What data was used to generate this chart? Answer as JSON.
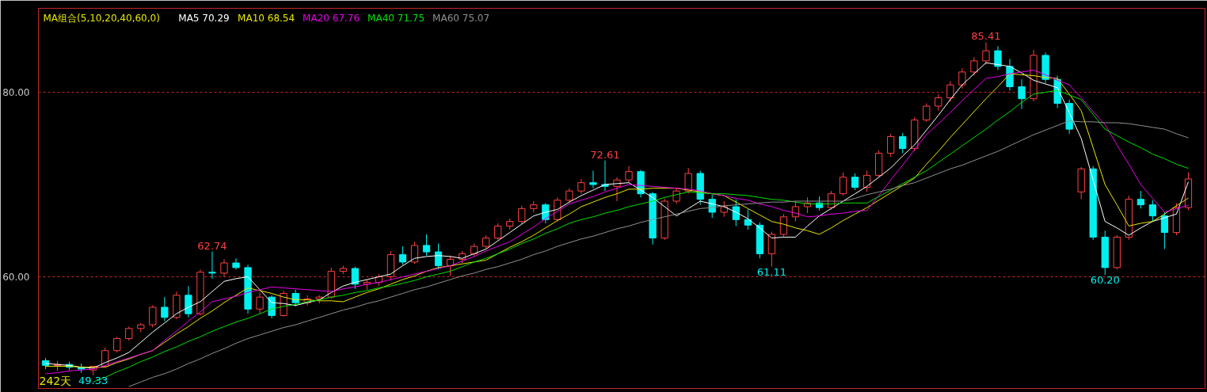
{
  "chart_data": {
    "type": "candlestick",
    "title": "MA组合(5,10,20,40,60,0)",
    "categories": [
      null,
      null,
      null,
      null,
      null,
      null,
      null,
      null,
      null,
      null,
      null,
      null,
      null,
      null,
      null,
      null,
      null,
      null,
      null,
      null,
      null,
      null,
      null,
      null,
      null,
      null,
      null,
      null,
      null,
      null,
      null,
      null,
      null,
      null,
      null,
      null,
      null,
      null,
      null,
      null,
      null,
      null,
      null,
      null,
      null,
      null,
      null,
      null,
      null,
      null,
      null,
      null,
      null,
      null,
      null,
      null,
      null,
      null,
      null,
      null,
      null,
      null,
      null,
      null,
      null,
      null,
      null,
      null,
      null,
      null,
      null,
      null,
      null,
      null,
      null,
      null,
      null,
      null,
      null,
      null,
      null,
      null,
      null,
      null,
      null,
      null,
      null,
      null,
      null,
      null,
      null,
      null,
      null,
      null,
      null,
      null,
      null
    ],
    "ohlc": [
      [
        50.9,
        51.2,
        50.0,
        50.4
      ],
      [
        50.4,
        50.9,
        49.8,
        50.5
      ],
      [
        50.5,
        50.8,
        49.9,
        50.2
      ],
      [
        50.2,
        50.6,
        49.6,
        50.0
      ],
      [
        49.9,
        50.3,
        49.33,
        50.3
      ],
      [
        50.3,
        52.3,
        50.2,
        52.0
      ],
      [
        52.0,
        53.5,
        51.8,
        53.3
      ],
      [
        53.3,
        54.6,
        53.1,
        54.4
      ],
      [
        54.4,
        55.0,
        54.0,
        54.8
      ],
      [
        54.8,
        56.9,
        54.5,
        56.7
      ],
      [
        56.7,
        57.8,
        55.2,
        55.6
      ],
      [
        55.6,
        58.4,
        55.4,
        58.0
      ],
      [
        58.0,
        59.0,
        55.6,
        56.0
      ],
      [
        56.0,
        60.8,
        55.8,
        60.5
      ],
      [
        60.5,
        62.74,
        59.8,
        60.4
      ],
      [
        60.4,
        61.9,
        60.0,
        61.5
      ],
      [
        61.5,
        62.0,
        60.8,
        61.0
      ],
      [
        61.0,
        61.3,
        56.0,
        56.5
      ],
      [
        56.5,
        58.3,
        56.0,
        57.8
      ],
      [
        57.8,
        58.0,
        55.5,
        55.8
      ],
      [
        55.8,
        58.5,
        55.7,
        58.2
      ],
      [
        58.2,
        58.6,
        56.8,
        57.2
      ],
      [
        57.2,
        58.0,
        56.9,
        57.6
      ],
      [
        57.6,
        58.0,
        57.1,
        57.8
      ],
      [
        57.8,
        61.0,
        57.6,
        60.6
      ],
      [
        60.6,
        61.2,
        60.3,
        60.9
      ],
      [
        60.9,
        61.1,
        58.7,
        59.2
      ],
      [
        59.2,
        59.7,
        58.6,
        59.4
      ],
      [
        59.4,
        60.3,
        59.0,
        60.0
      ],
      [
        60.0,
        62.8,
        59.6,
        62.4
      ],
      [
        62.4,
        63.3,
        61.3,
        61.6
      ],
      [
        61.6,
        63.8,
        61.4,
        63.4
      ],
      [
        63.4,
        64.6,
        62.3,
        62.7
      ],
      [
        62.7,
        63.6,
        60.8,
        61.2
      ],
      [
        61.2,
        62.3,
        60.1,
        61.9
      ],
      [
        61.9,
        62.8,
        61.5,
        62.5
      ],
      [
        62.5,
        63.6,
        62.2,
        63.3
      ],
      [
        63.3,
        64.5,
        63.0,
        64.2
      ],
      [
        64.2,
        65.8,
        64.0,
        65.5
      ],
      [
        65.5,
        66.3,
        65.1,
        66.0
      ],
      [
        66.0,
        67.7,
        65.7,
        67.4
      ],
      [
        67.4,
        68.2,
        67.0,
        67.8
      ],
      [
        67.8,
        68.0,
        65.8,
        66.2
      ],
      [
        66.2,
        68.6,
        66.0,
        68.3
      ],
      [
        68.3,
        69.6,
        68.0,
        69.3
      ],
      [
        69.3,
        70.6,
        69.0,
        70.2
      ],
      [
        70.2,
        71.5,
        69.6,
        70.0
      ],
      [
        70.0,
        72.61,
        69.3,
        69.8
      ],
      [
        69.8,
        70.8,
        68.2,
        70.5
      ],
      [
        70.5,
        72.0,
        70.2,
        71.4
      ],
      [
        71.4,
        71.6,
        68.6,
        69.0
      ],
      [
        69.0,
        69.2,
        63.5,
        64.2
      ],
      [
        64.2,
        68.5,
        64.0,
        68.2
      ],
      [
        68.2,
        69.6,
        67.9,
        69.3
      ],
      [
        69.3,
        71.8,
        69.0,
        71.2
      ],
      [
        71.2,
        71.5,
        67.8,
        68.4
      ],
      [
        68.4,
        68.9,
        66.4,
        67.0
      ],
      [
        67.0,
        68.2,
        66.5,
        67.6
      ],
      [
        67.6,
        68.4,
        65.5,
        66.2
      ],
      [
        66.2,
        67.3,
        65.1,
        65.6
      ],
      [
        65.6,
        65.9,
        62.0,
        62.5
      ],
      [
        62.5,
        64.9,
        61.11,
        64.6
      ],
      [
        64.6,
        66.8,
        64.3,
        66.5
      ],
      [
        66.5,
        68.2,
        66.0,
        67.6
      ],
      [
        67.6,
        68.6,
        66.9,
        68.0
      ],
      [
        68.0,
        68.7,
        67.2,
        67.5
      ],
      [
        67.5,
        69.3,
        67.3,
        69.0
      ],
      [
        69.0,
        71.3,
        68.8,
        70.8
      ],
      [
        70.8,
        71.2,
        69.4,
        69.7
      ],
      [
        69.7,
        71.5,
        69.2,
        71.0
      ],
      [
        71.0,
        73.7,
        70.8,
        73.4
      ],
      [
        73.4,
        75.5,
        73.0,
        75.2
      ],
      [
        75.2,
        75.6,
        73.4,
        73.9
      ],
      [
        73.9,
        77.3,
        73.6,
        77.0
      ],
      [
        77.0,
        78.8,
        76.8,
        78.5
      ],
      [
        78.5,
        79.8,
        78.0,
        79.4
      ],
      [
        79.4,
        81.2,
        79.0,
        80.8
      ],
      [
        80.8,
        82.6,
        80.4,
        82.2
      ],
      [
        82.2,
        83.8,
        81.8,
        83.4
      ],
      [
        83.4,
        85.41,
        83.0,
        84.5
      ],
      [
        84.5,
        85.0,
        82.4,
        82.8
      ],
      [
        82.8,
        83.6,
        80.2,
        80.6
      ],
      [
        80.6,
        81.4,
        78.2,
        79.3
      ],
      [
        79.3,
        84.6,
        79.0,
        84.0
      ],
      [
        84.0,
        84.3,
        81.0,
        81.4
      ],
      [
        81.4,
        81.8,
        78.3,
        78.8
      ],
      [
        78.8,
        79.2,
        75.5,
        76.0
      ],
      [
        69.2,
        71.9,
        68.4,
        71.7
      ],
      [
        71.7,
        72.0,
        64.0,
        64.3
      ],
      [
        64.3,
        65.0,
        60.2,
        61.0
      ],
      [
        61.0,
        64.5,
        60.8,
        64.3
      ],
      [
        64.3,
        68.8,
        64.0,
        68.4
      ],
      [
        68.4,
        69.3,
        67.4,
        67.8
      ],
      [
        67.8,
        68.3,
        66.0,
        66.6
      ],
      [
        66.6,
        67.0,
        63.0,
        64.8
      ],
      [
        64.8,
        68.0,
        64.5,
        67.5
      ],
      [
        67.5,
        71.3,
        67.2,
        70.6
      ]
    ],
    "series": [
      {
        "name": "MA5 70.29",
        "type": "line",
        "color": "#ffffff",
        "values": [
          50.6,
          50.5,
          50.4,
          50.2,
          50.1,
          50.7,
          51.2,
          51.8,
          52.9,
          54.0,
          55.0,
          56.0,
          56.7,
          57.3,
          58.4,
          59.5,
          59.8,
          60.0,
          58.6,
          57.2,
          57.1,
          56.9,
          57.2,
          57.5,
          58.3,
          59.0,
          59.4,
          59.7,
          60.0,
          60.3,
          61.2,
          62.0,
          62.2,
          62.3,
          62.2,
          62.0,
          62.5,
          63.0,
          63.9,
          64.8,
          65.7,
          66.6,
          67.0,
          67.3,
          68.1,
          68.8,
          69.4,
          70.0,
          70.1,
          70.2,
          69.4,
          68.6,
          67.6,
          66.6,
          67.4,
          68.2,
          67.9,
          67.6,
          67.0,
          66.3,
          65.3,
          64.2,
          64.3,
          64.3,
          65.5,
          66.6,
          67.4,
          68.2,
          69.0,
          69.8,
          70.8,
          71.8,
          73.1,
          74.3,
          75.9,
          77.5,
          79.2,
          80.8,
          82.0,
          83.2,
          83.0,
          82.8,
          82.1,
          81.3,
          80.9,
          80.5,
          77.8,
          75.0,
          70.5,
          66.0,
          65.3,
          64.5,
          65.3,
          66.0,
          66.4,
          66.8,
          70.29
        ]
      },
      {
        "name": "MA10 68.54",
        "type": "line",
        "color": "#e8e800",
        "values": [
          50.3,
          50.3,
          50.3,
          50.2,
          50.2,
          50.2,
          50.7,
          51.1,
          51.6,
          52.0,
          52.9,
          53.8,
          54.6,
          55.5,
          56.3,
          57.2,
          58.0,
          58.8,
          58.5,
          58.2,
          57.8,
          57.5,
          57.5,
          57.4,
          57.4,
          57.3,
          57.8,
          58.3,
          58.7,
          59.2,
          59.7,
          60.1,
          60.6,
          61.0,
          61.2,
          61.4,
          61.6,
          61.8,
          62.5,
          63.2,
          63.8,
          64.5,
          65.3,
          66.1,
          66.8,
          67.6,
          68.1,
          68.6,
          69.0,
          69.5,
          69.5,
          69.6,
          69.6,
          69.6,
          69.4,
          69.2,
          69.0,
          68.8,
          68.1,
          67.4,
          66.7,
          66.0,
          65.7,
          65.3,
          65.0,
          64.6,
          65.3,
          66.1,
          66.8,
          67.5,
          68.3,
          69.1,
          69.9,
          70.7,
          72.2,
          73.6,
          75.1,
          76.5,
          77.9,
          79.3,
          80.6,
          82.0,
          81.9,
          81.8,
          81.6,
          81.5,
          79.8,
          78.0,
          74.0,
          70.0,
          67.8,
          65.5,
          65.8,
          66.0,
          66.8,
          67.7,
          68.54
        ]
      },
      {
        "name": "MA20 67.76",
        "type": "line",
        "color": "#e800e8",
        "values": [
          49.5,
          49.6,
          49.8,
          49.9,
          50.0,
          50.4,
          50.8,
          51.2,
          51.6,
          52.0,
          53.1,
          54.1,
          55.2,
          56.2,
          57.3,
          57.6,
          57.9,
          58.3,
          58.6,
          58.9,
          58.8,
          58.7,
          58.6,
          58.5,
          58.4,
          58.7,
          58.9,
          59.2,
          59.4,
          59.7,
          60.0,
          60.3,
          60.6,
          60.9,
          61.2,
          61.7,
          62.2,
          62.8,
          63.3,
          63.8,
          64.6,
          65.4,
          66.3,
          67.1,
          67.9,
          68.3,
          68.7,
          69.2,
          69.6,
          70.0,
          69.9,
          69.8,
          69.7,
          69.6,
          69.5,
          69.3,
          69.0,
          68.8,
          68.5,
          68.3,
          67.9,
          67.6,
          67.2,
          66.9,
          66.5,
          66.6,
          66.8,
          66.9,
          67.1,
          67.2,
          68.8,
          70.5,
          72.1,
          73.8,
          75.4,
          76.6,
          77.8,
          79.1,
          80.3,
          81.5,
          81.7,
          82.0,
          82.2,
          82.4,
          81.9,
          81.3,
          80.8,
          79.4,
          77.9,
          76.5,
          74.3,
          72.2,
          70.0,
          68.5,
          67.0,
          67.4,
          67.76
        ]
      },
      {
        "name": "MA40 71.75",
        "type": "line",
        "color": "#00e000",
        "values": [
          null,
          null,
          null,
          null,
          48.6,
          49.1,
          49.7,
          50.2,
          50.8,
          51.3,
          51.9,
          52.4,
          53.0,
          53.5,
          54.1,
          54.6,
          55.1,
          55.5,
          56.0,
          56.5,
          56.8,
          57.0,
          57.3,
          57.5,
          57.8,
          58.0,
          58.3,
          58.5,
          58.8,
          59.0,
          59.3,
          59.6,
          60.0,
          60.3,
          60.6,
          61.1,
          61.6,
          62.0,
          62.5,
          63.0,
          63.6,
          64.1,
          64.7,
          65.2,
          65.8,
          66.2,
          66.5,
          66.9,
          67.2,
          67.6,
          67.9,
          68.2,
          68.6,
          68.9,
          69.2,
          69.1,
          69.0,
          69.0,
          68.9,
          68.8,
          68.6,
          68.4,
          68.3,
          68.1,
          67.9,
          67.9,
          67.9,
          68.0,
          68.0,
          68.0,
          68.7,
          69.4,
          70.1,
          70.8,
          71.5,
          72.4,
          73.3,
          74.2,
          75.1,
          76.0,
          77.0,
          77.9,
          78.9,
          79.8,
          80.0,
          80.2,
          79.7,
          79.2,
          77.6,
          76.0,
          75.3,
          74.6,
          74.0,
          73.3,
          72.8,
          72.2,
          71.75
        ]
      },
      {
        "name": "MA60 75.07",
        "type": "line",
        "color": "#909090",
        "values": [
          null,
          null,
          null,
          null,
          null,
          null,
          null,
          48.1,
          48.6,
          49.1,
          49.5,
          50.0,
          50.6,
          51.1,
          51.7,
          52.2,
          52.8,
          53.3,
          53.7,
          54.1,
          54.5,
          54.8,
          55.2,
          55.6,
          56.0,
          56.4,
          56.7,
          57.1,
          57.4,
          57.8,
          58.2,
          58.6,
          58.9,
          59.3,
          59.7,
          60.1,
          60.4,
          60.8,
          61.1,
          61.5,
          61.9,
          62.4,
          62.8,
          63.3,
          63.7,
          64.1,
          64.4,
          64.8,
          65.2,
          65.5,
          65.9,
          66.2,
          66.5,
          66.8,
          67.1,
          67.4,
          67.5,
          67.7,
          67.8,
          67.9,
          68.0,
          68.1,
          68.1,
          68.2,
          68.2,
          68.2,
          68.2,
          68.2,
          68.5,
          68.9,
          69.2,
          69.5,
          69.9,
          70.2,
          70.7,
          71.2,
          71.7,
          72.1,
          72.6,
          73.1,
          73.6,
          74.2,
          74.8,
          75.4,
          75.9,
          76.4,
          76.9,
          76.8,
          76.8,
          76.7,
          76.7,
          76.6,
          76.4,
          76.2,
          76.0,
          75.5,
          75.07
        ]
      }
    ],
    "ylim": [
      47.9,
      89.1
    ],
    "yticks": [
      {
        "value": 60,
        "label": "60.00"
      },
      {
        "value": 80,
        "label": "80.00"
      }
    ],
    "tick_labels": "y",
    "grid": "y",
    "line_style": "solid",
    "annotations": [
      {
        "text": "85.41",
        "y": 85.41
      },
      {
        "text": "72.61",
        "y": 72.61
      },
      {
        "text": "62.74",
        "y": 62.74
      },
      {
        "text": "61.11",
        "y": 61.11
      },
      {
        "text": "60.20",
        "y": 60.2
      },
      {
        "text": "49.33",
        "y": 49.33
      },
      "242天"
    ]
  }
}
